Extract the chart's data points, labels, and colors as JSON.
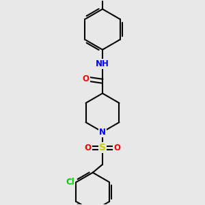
{
  "bg_color": "#e8e8e8",
  "bond_color": "#000000",
  "atom_colors": {
    "O": "#ff0000",
    "N": "#0000ff",
    "S": "#cccc00",
    "Cl": "#00cc00",
    "C": "#000000",
    "H": "#000000"
  },
  "line_width": 1.5,
  "font_size": 8.5,
  "figsize": [
    3.0,
    3.0
  ],
  "dpi": 100
}
